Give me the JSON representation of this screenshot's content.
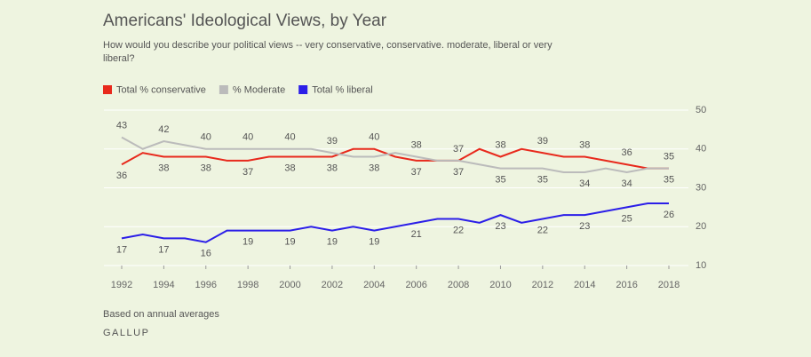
{
  "chart_data": {
    "type": "line",
    "title": "Americans' Ideological Views, by Year",
    "subtitle_lines": [
      "How would you describe your political views -- very conservative, conservative. moderate, liberal or very",
      "liberal?"
    ],
    "footnote": "Based on annual averages",
    "source": "GALLUP",
    "x": [
      1992,
      1993,
      1994,
      1995,
      1996,
      1997,
      1998,
      1999,
      2000,
      2001,
      2002,
      2003,
      2004,
      2005,
      2006,
      2007,
      2008,
      2009,
      2010,
      2011,
      2012,
      2013,
      2014,
      2015,
      2016,
      2017,
      2018
    ],
    "series": [
      {
        "name": "Total % conservative",
        "color": "#e8291c",
        "values": [
          36,
          39,
          38,
          38,
          38,
          37,
          37,
          38,
          38,
          38,
          38,
          40,
          40,
          38,
          37,
          37,
          37,
          40,
          38,
          40,
          39,
          38,
          38,
          37,
          36,
          35,
          35
        ]
      },
      {
        "name": "% Moderate",
        "color": "#bbbbbb",
        "values": [
          43,
          40,
          42,
          41,
          40,
          40,
          40,
          40,
          40,
          40,
          39,
          38,
          38,
          39,
          38,
          37,
          37,
          36,
          35,
          35,
          35,
          34,
          34,
          35,
          34,
          35,
          35
        ]
      },
      {
        "name": "Total % liberal",
        "color": "#2b1ee8",
        "values": [
          17,
          18,
          17,
          17,
          16,
          19,
          19,
          19,
          19,
          20,
          19,
          20,
          19,
          20,
          21,
          22,
          22,
          21,
          23,
          21,
          22,
          23,
          23,
          24,
          25,
          26,
          26
        ]
      }
    ],
    "xlim": [
      1992,
      2018
    ],
    "xticks": [
      1992,
      1994,
      1996,
      1998,
      2000,
      2002,
      2004,
      2006,
      2008,
      2010,
      2012,
      2014,
      2016,
      2018
    ],
    "ylim": [
      10,
      50
    ],
    "yticks": [
      10,
      20,
      30,
      40,
      50
    ],
    "grid": true,
    "legend": "top-left"
  }
}
